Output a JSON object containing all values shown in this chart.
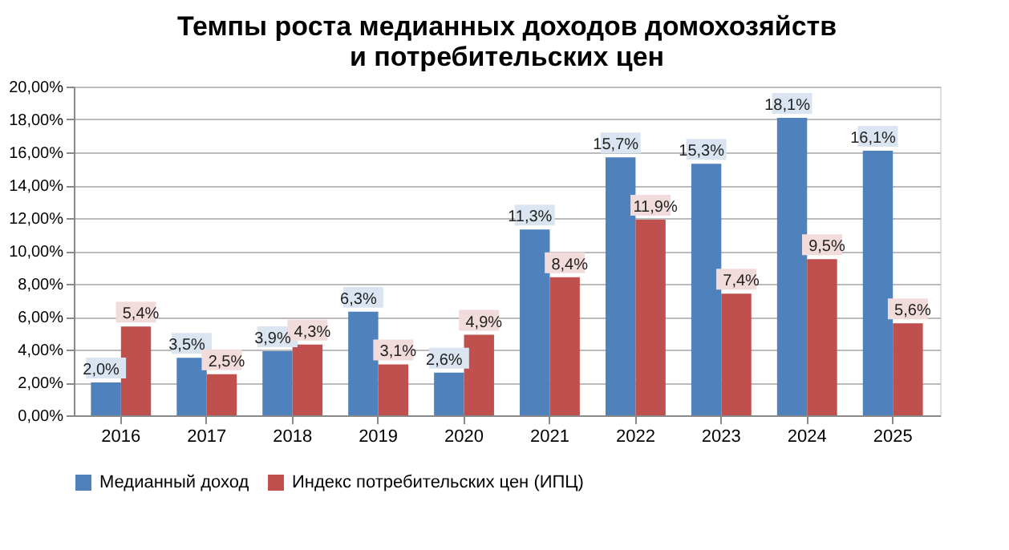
{
  "chart_data": {
    "type": "bar",
    "title": [
      "Темпы роста медианных доходов домохозяйств",
      "и потребительских цен"
    ],
    "categories": [
      "2016",
      "2017",
      "2018",
      "2019",
      "2020",
      "2021",
      "2022",
      "2023",
      "2024",
      "2025"
    ],
    "series": [
      {
        "name": "Медианный доход",
        "color": "#4f81bd",
        "values": [
          2.0,
          3.5,
          3.9,
          6.3,
          2.6,
          11.3,
          15.7,
          15.3,
          18.1,
          16.1
        ],
        "value_labels": [
          "2,0%",
          "3,5%",
          "3,9%",
          "6,3%",
          "2,6%",
          "11,3%",
          "15,7%",
          "15,3%",
          "18,1%",
          "16,1%"
        ]
      },
      {
        "name": "Индекс потребительских цен (ИПЦ)",
        "color": "#c0504d",
        "values": [
          5.4,
          2.5,
          4.3,
          3.1,
          4.9,
          8.4,
          11.9,
          7.4,
          9.5,
          5.6
        ],
        "value_labels": [
          "5,4%",
          "2,5%",
          "4,3%",
          "3,1%",
          "4,9%",
          "8,4%",
          "11,9%",
          "7,4%",
          "9,5%",
          "5,6%"
        ]
      }
    ],
    "ylim": [
      0,
      20
    ],
    "yticks": [
      {
        "value": 0,
        "label": "0,00%"
      },
      {
        "value": 2,
        "label": "2,00%"
      },
      {
        "value": 4,
        "label": "4,00%"
      },
      {
        "value": 6,
        "label": "6,00%"
      },
      {
        "value": 8,
        "label": "8,00%"
      },
      {
        "value": 10,
        "label": "10,00%"
      },
      {
        "value": 12,
        "label": "12,00%"
      },
      {
        "value": 14,
        "label": "14,00%"
      },
      {
        "value": 16,
        "label": "16,00%"
      },
      {
        "value": 18,
        "label": "18,00%"
      },
      {
        "value": 20,
        "label": "20,00%"
      }
    ],
    "grid": "y",
    "legend": "bottom"
  }
}
